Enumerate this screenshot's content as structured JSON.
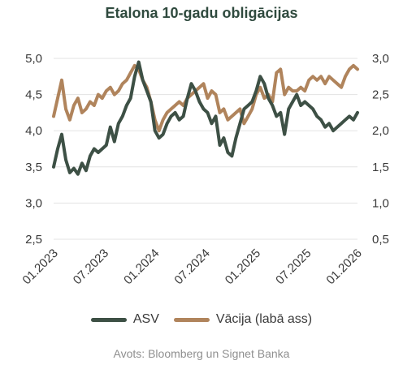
{
  "chart_data": {
    "type": "line",
    "title": "Etalona 10-gadu obligācijas",
    "x_ticks": [
      "01.2023",
      "07.2023",
      "01.2024",
      "07.2024",
      "01.2025",
      "07.2025",
      "01.2026"
    ],
    "x_range": [
      "2023-01",
      "2026-01"
    ],
    "y_left": {
      "range": [
        2.5,
        5.0
      ],
      "ticks": [
        "5,0",
        "4,5",
        "4,0",
        "3,5",
        "3,0",
        "2,5"
      ]
    },
    "y_right": {
      "range": [
        0.5,
        3.0
      ],
      "ticks": [
        "3,0",
        "2,5",
        "2,0",
        "1,5",
        "1,0",
        "0,5"
      ]
    },
    "grid": "horizontal",
    "legend_position": "bottom",
    "series": [
      {
        "name": "ASV",
        "axis": "left",
        "color": "#3d5045",
        "x": [
          "2023-01",
          "2023-01",
          "2023-02",
          "2023-02",
          "2023-03",
          "2023-03",
          "2023-03",
          "2023-04",
          "2023-04",
          "2023-05",
          "2023-05",
          "2023-05",
          "2023-06",
          "2023-06",
          "2023-07",
          "2023-07",
          "2023-08",
          "2023-08",
          "2023-09",
          "2023-09",
          "2023-10",
          "2023-10",
          "2023-10",
          "2023-11",
          "2023-11",
          "2023-12",
          "2023-12",
          "2024-01",
          "2024-01",
          "2024-02",
          "2024-02",
          "2024-03",
          "2024-03",
          "2024-04",
          "2024-04",
          "2024-05",
          "2024-05",
          "2024-06",
          "2024-06",
          "2024-07",
          "2024-07",
          "2024-08",
          "2024-08",
          "2024-09",
          "2024-09",
          "2024-10",
          "2024-10",
          "2024-11",
          "2024-11",
          "2024-12",
          "2024-12",
          "2025-01",
          "2025-01",
          "2025-02",
          "2025-02",
          "2025-03",
          "2025-03",
          "2025-04",
          "2025-04",
          "2025-05",
          "2025-05",
          "2025-06",
          "2025-06",
          "2025-07",
          "2025-07",
          "2025-08",
          "2025-08",
          "2025-09",
          "2025-09",
          "2025-10",
          "2025-10",
          "2025-11",
          "2025-11",
          "2025-12",
          "2025-12",
          "2026-01"
        ],
        "values": [
          3.5,
          3.75,
          3.95,
          3.6,
          3.42,
          3.48,
          3.4,
          3.55,
          3.45,
          3.65,
          3.75,
          3.7,
          3.75,
          3.8,
          4.05,
          3.85,
          4.1,
          4.2,
          4.35,
          4.45,
          4.75,
          4.95,
          4.7,
          4.55,
          4.4,
          4.0,
          3.9,
          3.95,
          4.1,
          4.2,
          4.25,
          4.15,
          4.2,
          4.45,
          4.65,
          4.55,
          4.4,
          4.3,
          4.25,
          4.1,
          4.2,
          3.8,
          3.9,
          3.7,
          3.65,
          3.9,
          4.1,
          4.3,
          4.35,
          4.4,
          4.55,
          4.75,
          4.65,
          4.45,
          4.35,
          4.2,
          4.25,
          3.95,
          4.3,
          4.4,
          4.5,
          4.35,
          4.4,
          4.35,
          4.3,
          4.2,
          4.15,
          4.05,
          4.1,
          4.0,
          4.05,
          4.1,
          4.15,
          4.2,
          4.15,
          4.25
        ]
      },
      {
        "name": "Vācija (labā ass)",
        "axis": "right",
        "color": "#b0845c",
        "x": [
          "2023-01",
          "2023-01",
          "2023-02",
          "2023-02",
          "2023-03",
          "2023-03",
          "2023-03",
          "2023-04",
          "2023-04",
          "2023-05",
          "2023-05",
          "2023-05",
          "2023-06",
          "2023-06",
          "2023-07",
          "2023-07",
          "2023-08",
          "2023-08",
          "2023-09",
          "2023-09",
          "2023-10",
          "2023-10",
          "2023-10",
          "2023-11",
          "2023-11",
          "2023-12",
          "2023-12",
          "2024-01",
          "2024-01",
          "2024-02",
          "2024-02",
          "2024-03",
          "2024-03",
          "2024-04",
          "2024-04",
          "2024-05",
          "2024-05",
          "2024-06",
          "2024-06",
          "2024-07",
          "2024-07",
          "2024-08",
          "2024-08",
          "2024-09",
          "2024-09",
          "2024-10",
          "2024-10",
          "2024-11",
          "2024-11",
          "2024-12",
          "2024-12",
          "2025-01",
          "2025-01",
          "2025-02",
          "2025-02",
          "2025-03",
          "2025-03",
          "2025-04",
          "2025-04",
          "2025-05",
          "2025-05",
          "2025-06",
          "2025-06",
          "2025-07",
          "2025-07",
          "2025-08",
          "2025-08",
          "2025-09",
          "2025-09",
          "2025-10",
          "2025-10",
          "2025-11",
          "2025-11",
          "2025-12",
          "2025-12",
          "2026-01"
        ],
        "values": [
          2.2,
          2.45,
          2.7,
          2.3,
          2.15,
          2.35,
          2.45,
          2.25,
          2.3,
          2.4,
          2.35,
          2.5,
          2.45,
          2.55,
          2.6,
          2.5,
          2.55,
          2.65,
          2.7,
          2.8,
          2.9,
          2.85,
          2.7,
          2.6,
          2.4,
          2.15,
          2.0,
          2.15,
          2.25,
          2.3,
          2.35,
          2.4,
          2.35,
          2.45,
          2.5,
          2.55,
          2.6,
          2.65,
          2.45,
          2.55,
          2.5,
          2.25,
          2.3,
          2.15,
          2.2,
          2.25,
          2.3,
          2.1,
          2.2,
          2.3,
          2.5,
          2.6,
          2.45,
          2.5,
          2.4,
          2.8,
          2.85,
          2.5,
          2.6,
          2.55,
          2.55,
          2.6,
          2.55,
          2.7,
          2.75,
          2.7,
          2.75,
          2.65,
          2.75,
          2.7,
          2.65,
          2.6,
          2.75,
          2.85,
          2.9,
          2.85
        ]
      }
    ],
    "legend": [
      "ASV",
      "Vācija (labā ass)"
    ],
    "source": "Avots: Bloomberg un Signet Banka"
  }
}
